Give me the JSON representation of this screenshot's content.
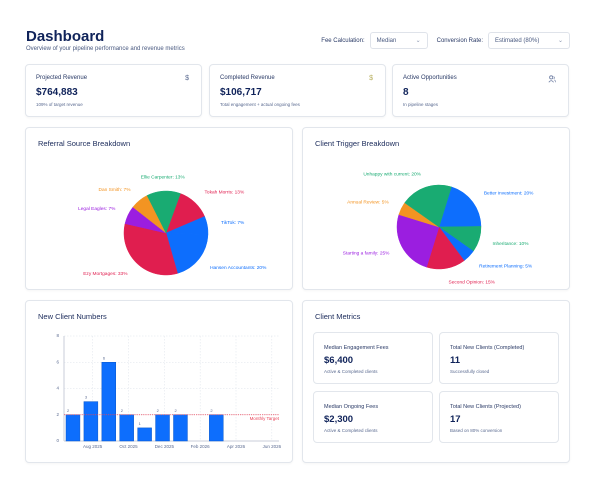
{
  "header": {
    "title": "Dashboard",
    "subtitle": "Overview of your pipeline performance and revenue metrics"
  },
  "filters": {
    "fee_label": "Fee Calculation:",
    "fee_value": "Median",
    "rate_label": "Conversion Rate:",
    "rate_value": "Estimated (80%)"
  },
  "kpis": [
    {
      "label": "Projected Revenue",
      "value": "$764,883",
      "sub": "109% of target revenue",
      "icon": "dollar-icon",
      "icon_glyph": "$",
      "icon_color": "#5a6a90"
    },
    {
      "label": "Completed Revenue",
      "value": "$106,717",
      "sub": "Total engagement + actual ongoing fees",
      "icon": "dollar-icon",
      "icon_glyph": "$",
      "icon_color": "#b8b060"
    },
    {
      "label": "Active Opportunities",
      "value": "8",
      "sub": "In pipeline stages",
      "icon": "users-icon",
      "icon_glyph": "👥",
      "icon_color": "#5a6a90"
    }
  ],
  "panels": {
    "referral_title": "Referral Source Breakdown",
    "trigger_title": "Client Trigger Breakdown",
    "clients_title": "New Client Numbers",
    "metrics_title": "Client Metrics"
  },
  "metrics": [
    {
      "label": "Median Engagement Fees",
      "value": "$6,400",
      "sub": "Active & Completed clients"
    },
    {
      "label": "Total New Clients (Completed)",
      "value": "11",
      "sub": "Successfully closed"
    },
    {
      "label": "Median Ongoing Fees",
      "value": "$2,300",
      "sub": "Active & Completed clients"
    },
    {
      "label": "Total New Clients (Projected)",
      "value": "17",
      "sub": "Based on 80% conversion"
    }
  ],
  "chart_data": [
    {
      "type": "pie",
      "title": "Referral Source Breakdown",
      "slices": [
        {
          "label": "Tokah Morris: 13%",
          "value": 13,
          "color": "#e01e4f"
        },
        {
          "label": "TikTok: 7%",
          "value": 7,
          "color": "#0d6efd"
        },
        {
          "label": "Hansen Accountants: 20%",
          "value": 20,
          "color": "#0d6efd"
        },
        {
          "label": "Ezy Mortgages: 33%",
          "value": 33,
          "color": "#e01e4f"
        },
        {
          "label": "Legal Eagles: 7%",
          "value": 7,
          "color": "#9b1ee0"
        },
        {
          "label": "Dan Smith: 7%",
          "value": 7,
          "color": "#f39422"
        },
        {
          "label": "Ellie Carpenter: 13%",
          "value": 13,
          "color": "#19ab72"
        }
      ]
    },
    {
      "type": "pie",
      "title": "Client Trigger Breakdown",
      "slices": [
        {
          "label": "Better investment: 20%",
          "value": 20,
          "color": "#0d6efd"
        },
        {
          "label": "Inheritance: 10%",
          "value": 10,
          "color": "#19ab72"
        },
        {
          "label": "Retirement Planning: 5%",
          "value": 5,
          "color": "#0d6efd"
        },
        {
          "label": "Second Opinion: 15%",
          "value": 15,
          "color": "#e01e4f"
        },
        {
          "label": "Starting a family: 25%",
          "value": 25,
          "color": "#9b1ee0"
        },
        {
          "label": "Annual Review: 5%",
          "value": 5,
          "color": "#f39422"
        },
        {
          "label": "Unhappy with current: 20%",
          "value": 20,
          "color": "#19ab72"
        }
      ]
    },
    {
      "type": "bar",
      "title": "New Client Numbers",
      "categories": [
        "Jul 2025",
        "Aug 2025",
        "Sep 2025",
        "Oct 2025",
        "Nov 2025",
        "Dec 2025",
        "Jan 2026",
        "Feb 2026",
        "Mar 2026"
      ],
      "values": [
        2,
        3,
        6,
        2,
        1,
        2,
        2,
        0,
        2
      ],
      "x_ticks": [
        "Aug 2025",
        "Oct 2025",
        "Dec 2025",
        "Feb 2026",
        "Apr 2026",
        "Jun 2026"
      ],
      "y_ticks": [
        0,
        2,
        4,
        6,
        8
      ],
      "ylim": [
        0,
        8
      ],
      "target": {
        "label": "Monthly Target",
        "value": 2,
        "color": "#e8455a"
      },
      "bar_color": "#0d6efd",
      "grid": true
    }
  ]
}
